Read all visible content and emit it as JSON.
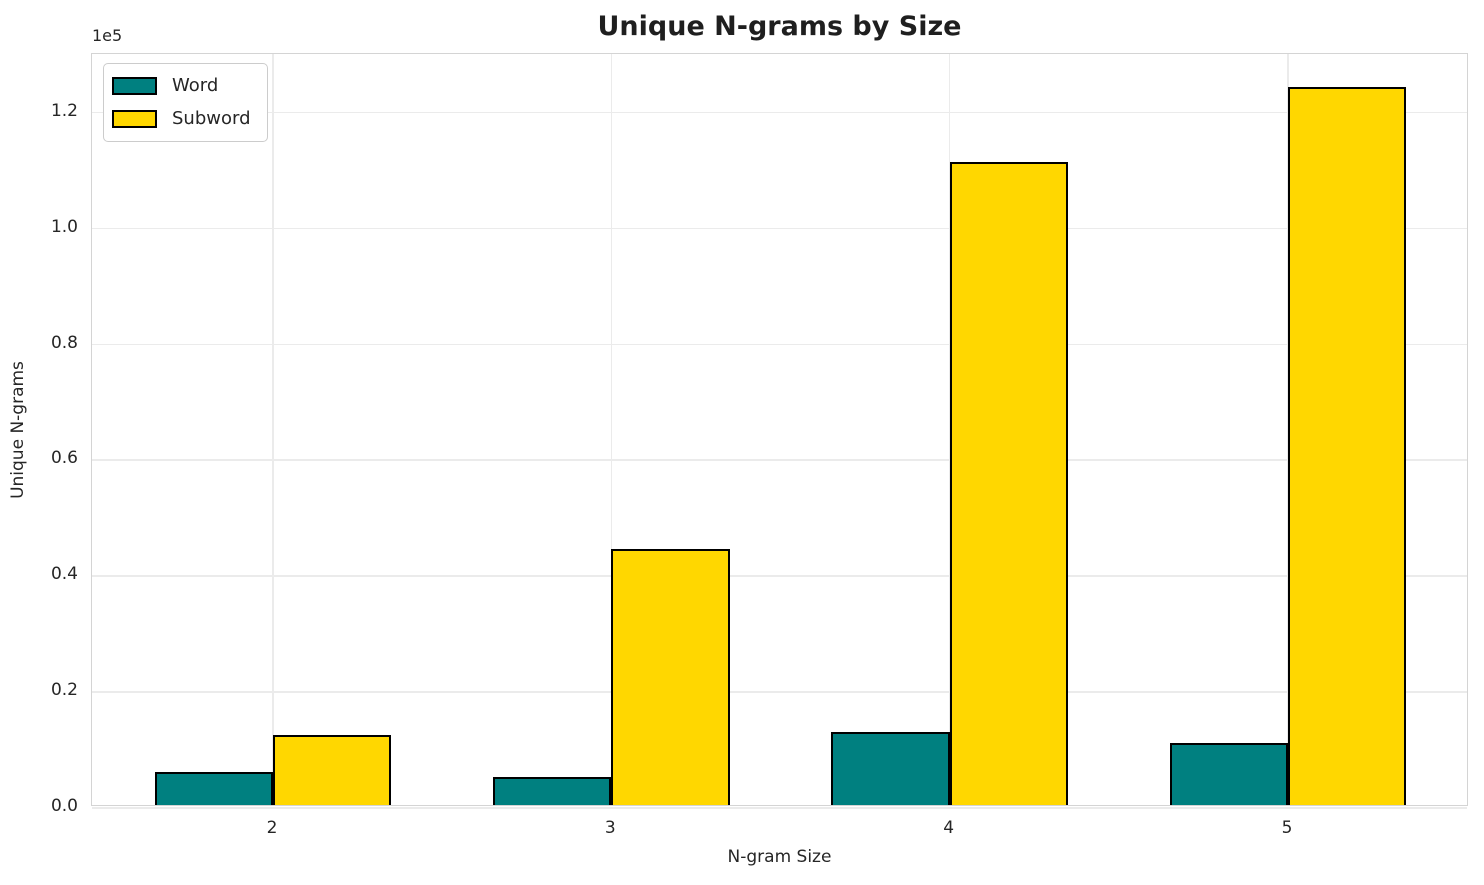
{
  "chart_data": {
    "type": "bar",
    "title": "Unique N-grams by Size",
    "xlabel": "N-gram Size",
    "ylabel": "Unique N-grams",
    "categories": [
      "2",
      "3",
      "4",
      "5"
    ],
    "series": [
      {
        "name": "Word",
        "color": "#008080",
        "values": [
          5700,
          4900,
          12600,
          10700
        ]
      },
      {
        "name": "Subword",
        "color": "#FFD700",
        "values": [
          12100,
          44200,
          111000,
          124000
        ]
      }
    ],
    "ylim": [
      0,
      130000
    ],
    "yticks": [
      0,
      20000,
      40000,
      60000,
      80000,
      100000,
      120000
    ],
    "ytick_labels": [
      "0.0",
      "0.2",
      "0.4",
      "0.6",
      "0.8",
      "1.0",
      "1.2"
    ],
    "y_offset_label": "1e5",
    "bar_edge_color": "#000000",
    "grid": true,
    "legend_position": "upper left"
  }
}
